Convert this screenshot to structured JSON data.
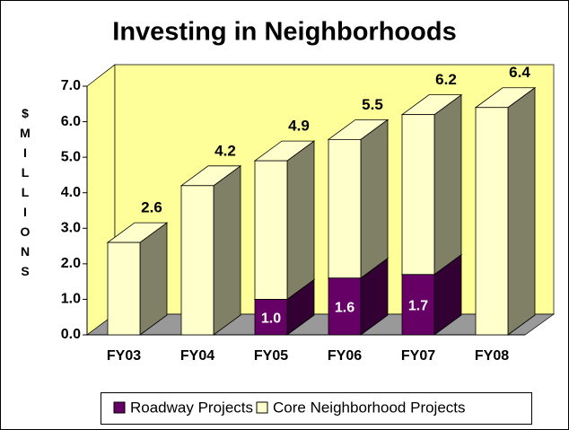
{
  "chart_data": {
    "type": "bar3d_stacked",
    "title": "Investing in Neighborhoods",
    "y_label": "$ MILLIONS",
    "categories": [
      "FY03",
      "FY04",
      "FY05",
      "FY06",
      "FY07",
      "FY08"
    ],
    "series": [
      {
        "name": "Roadway Projects",
        "color": "#660066",
        "values": [
          null,
          null,
          1.0,
          1.6,
          1.7,
          null
        ],
        "value_labels": [
          null,
          null,
          "1.0",
          "1.6",
          "1.7",
          null
        ]
      },
      {
        "name": "Core Neighborhood Projects",
        "color": "#ffffcc",
        "values": [
          2.6,
          4.2,
          3.9,
          3.9,
          4.5,
          6.4
        ]
      }
    ],
    "totals": [
      2.6,
      4.2,
      4.9,
      5.5,
      6.2,
      6.4
    ],
    "ylim": [
      0,
      7
    ],
    "yticks": [
      {
        "value": 0,
        "label": "0.0"
      },
      {
        "value": 1,
        "label": "1.0"
      },
      {
        "value": 2,
        "label": "2.0"
      },
      {
        "value": 3,
        "label": "3.0"
      },
      {
        "value": 4,
        "label": "4.0"
      },
      {
        "value": 5,
        "label": "5.0"
      },
      {
        "value": 6,
        "label": "6.0"
      },
      {
        "value": 7,
        "label": "7.0"
      }
    ],
    "legend": "bottom"
  }
}
